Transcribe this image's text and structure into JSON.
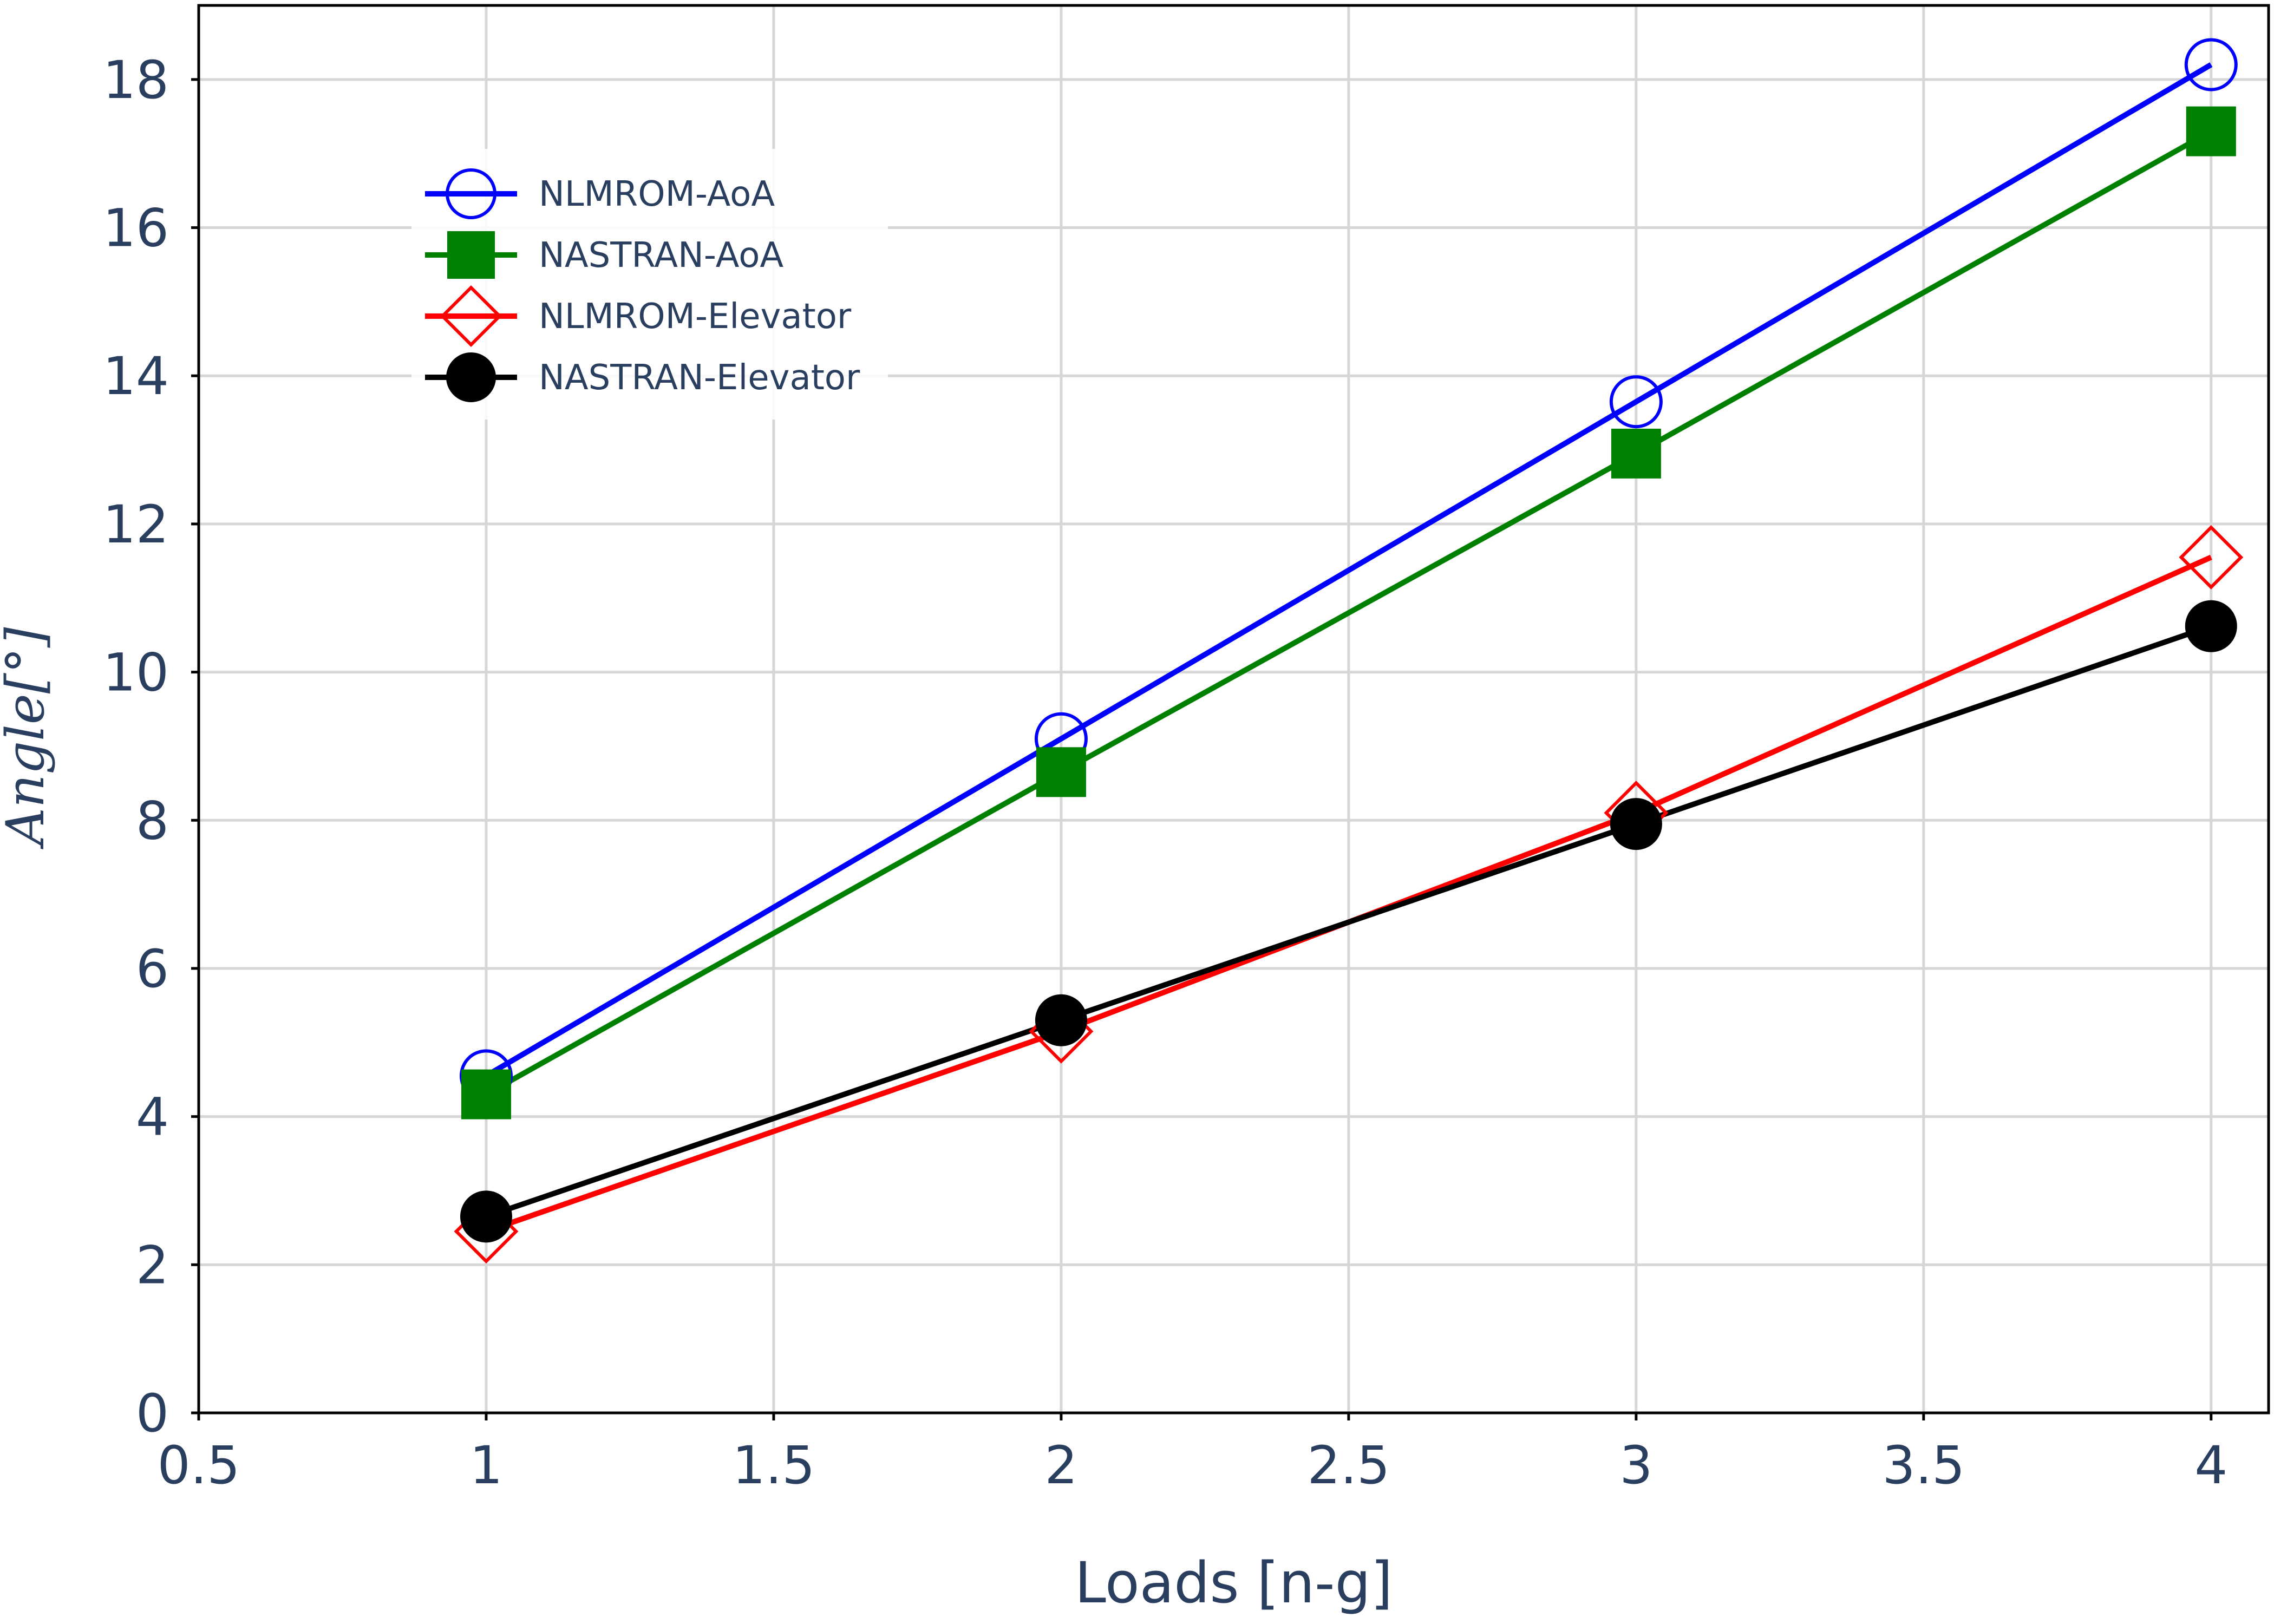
{
  "chart_data": {
    "type": "line",
    "xlabel": "Loads [n-g]",
    "ylabel": "Angle[°]",
    "xlim": [
      0.5,
      4.1
    ],
    "ylim": [
      0,
      19
    ],
    "x_ticks": [
      0.5,
      1,
      1.5,
      2,
      2.5,
      3,
      3.5,
      4
    ],
    "x_tick_labels": [
      "0.5",
      "1",
      "1.5",
      "2",
      "2.5",
      "3",
      "3.5",
      "4"
    ],
    "y_ticks": [
      0,
      2,
      4,
      6,
      8,
      10,
      12,
      14,
      16,
      18
    ],
    "y_tick_labels": [
      "0",
      "2",
      "4",
      "6",
      "8",
      "10",
      "12",
      "14",
      "16",
      "18"
    ],
    "grid": true,
    "legend_position": "top-left",
    "x": [
      1,
      2,
      3,
      4
    ],
    "series": [
      {
        "name": "NLMROM-AoA",
        "values": [
          4.55,
          9.1,
          13.65,
          18.2
        ],
        "color": "#0000ff",
        "marker": "circle-open"
      },
      {
        "name": "NASTRAN-AoA",
        "values": [
          4.3,
          8.65,
          12.95,
          17.3
        ],
        "color": "#008000",
        "marker": "square"
      },
      {
        "name": "NLMROM-Elevator",
        "values": [
          2.45,
          5.15,
          8.1,
          11.55
        ],
        "color": "#ff0000",
        "marker": "diamond-open"
      },
      {
        "name": "NASTRAN-Elevator",
        "values": [
          2.65,
          5.3,
          7.95,
          10.62
        ],
        "color": "#000000",
        "marker": "circle"
      }
    ]
  }
}
